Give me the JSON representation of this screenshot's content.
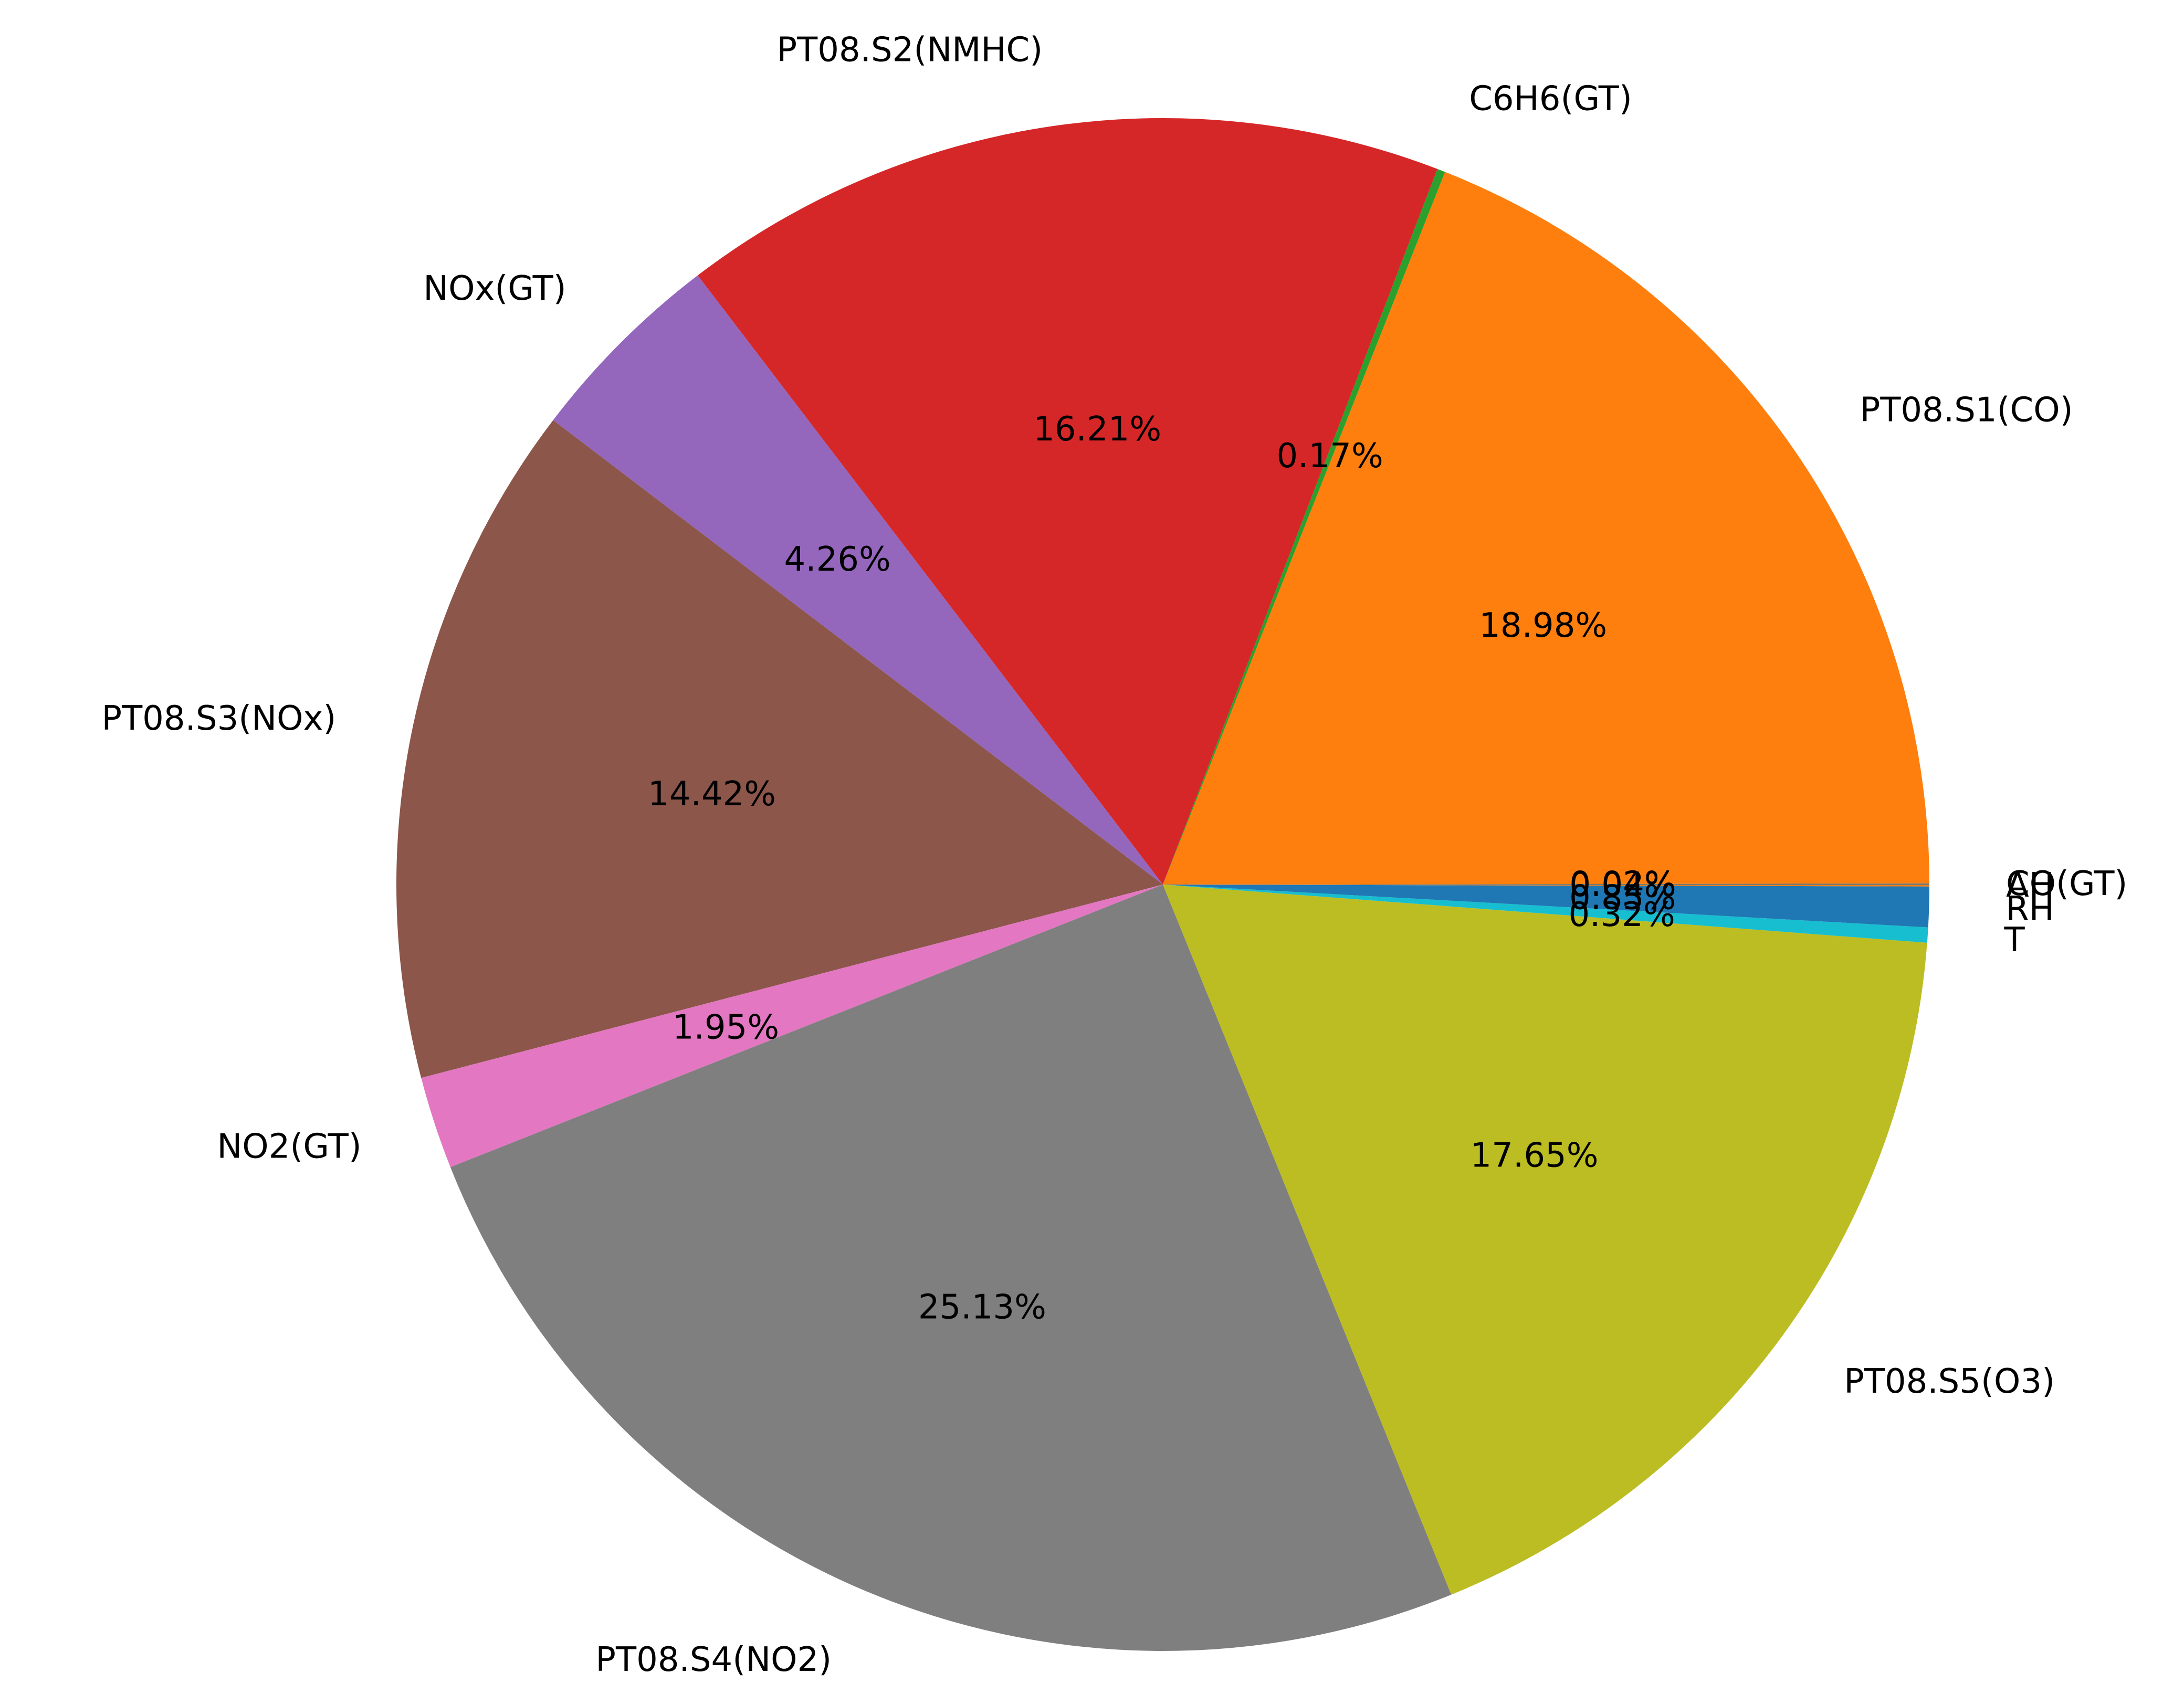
{
  "chart_data": {
    "type": "pie",
    "title": "",
    "start_angle_deg": 0,
    "direction": "counterclockwise",
    "legend": "none",
    "slices": [
      {
        "label": "CO(GT)",
        "pct_label": "0.02%",
        "value": 0.02,
        "color": "#1f77b4"
      },
      {
        "label": "PT08.S1(CO)",
        "pct_label": "18.98%",
        "value": 18.98,
        "color": "#ff7f0e"
      },
      {
        "label": "C6H6(GT)",
        "pct_label": "0.17%",
        "value": 0.17,
        "color": "#2ca02c"
      },
      {
        "label": "PT08.S2(NMHC)",
        "pct_label": "16.21%",
        "value": 16.21,
        "color": "#d62728"
      },
      {
        "label": "NOx(GT)",
        "pct_label": "4.26%",
        "value": 4.26,
        "color": "#9467bd"
      },
      {
        "label": "PT08.S3(NOx)",
        "pct_label": "14.42%",
        "value": 14.42,
        "color": "#8c564b"
      },
      {
        "label": "NO2(GT)",
        "pct_label": "1.95%",
        "value": 1.95,
        "color": "#e377c2"
      },
      {
        "label": "PT08.S4(NO2)",
        "pct_label": "25.13%",
        "value": 25.13,
        "color": "#7f7f7f"
      },
      {
        "label": "PT08.S5(O3)",
        "pct_label": "17.65%",
        "value": 17.65,
        "color": "#bcbd22"
      },
      {
        "label": "T",
        "pct_label": "0.32%",
        "value": 0.32,
        "color": "#17becf"
      },
      {
        "label": "RH",
        "pct_label": "0.85%",
        "value": 0.85,
        "color": "#1f77b4"
      },
      {
        "label": "AH",
        "pct_label": "0.04%",
        "value": 0.04,
        "color": "#ff7f0e"
      }
    ]
  }
}
